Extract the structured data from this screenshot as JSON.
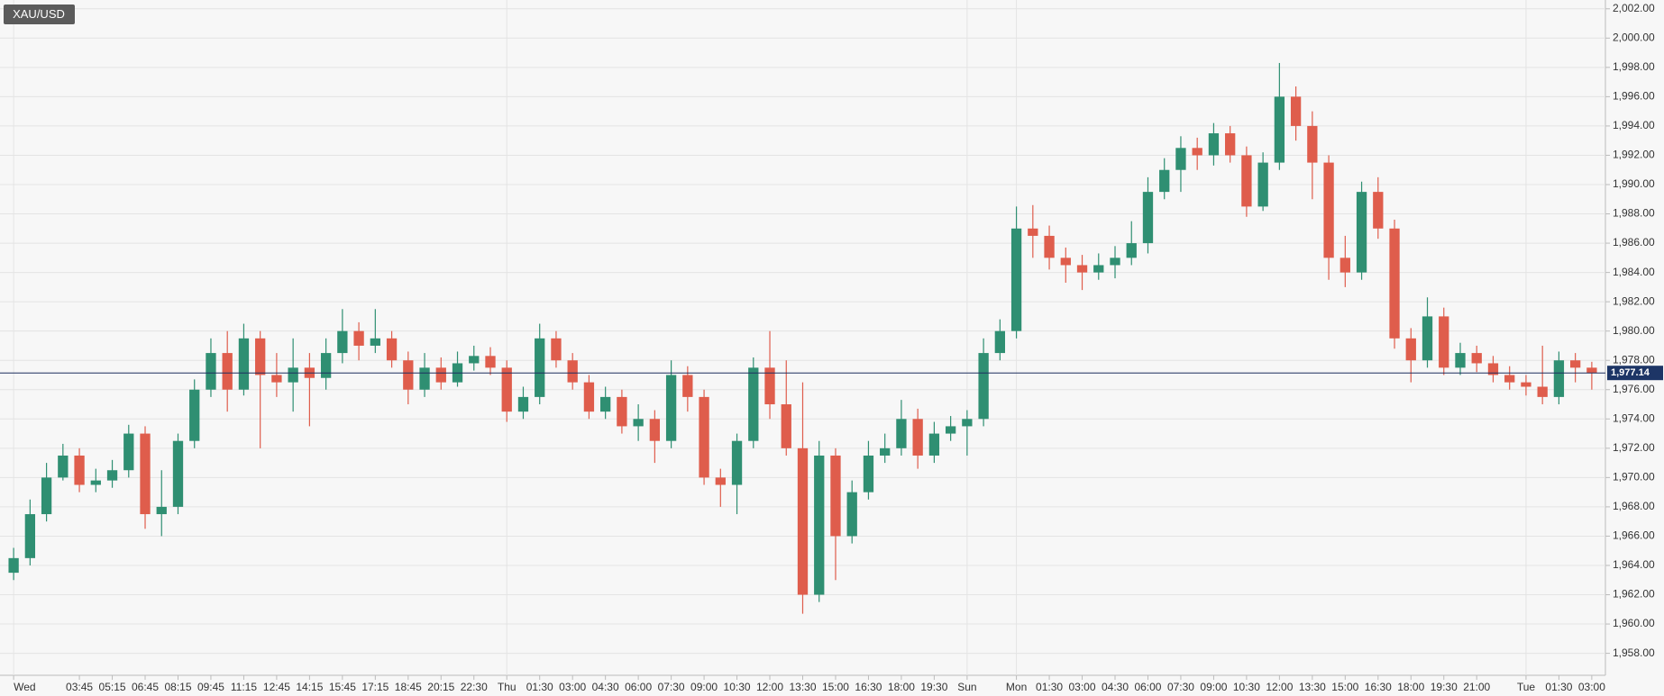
{
  "chart_data": {
    "type": "candlestick",
    "title": "XAU/USD",
    "categories": [
      "Wed",
      null,
      null,
      null,
      "03:45",
      null,
      "05:15",
      null,
      "06:45",
      null,
      "08:15",
      null,
      "09:45",
      null,
      "11:15",
      null,
      "12:45",
      null,
      "14:15",
      null,
      "15:45",
      null,
      "17:15",
      null,
      "18:45",
      null,
      "20:15",
      null,
      "22:30",
      null,
      "Thu",
      null,
      "01:30",
      null,
      "03:00",
      null,
      "04:30",
      null,
      "06:00",
      null,
      "07:30",
      null,
      "09:00",
      null,
      "10:30",
      null,
      "12:00",
      null,
      "13:30",
      null,
      "15:00",
      null,
      "16:30",
      null,
      "18:00",
      null,
      "19:30",
      null,
      "Sun",
      null,
      null,
      "Mon",
      null,
      "01:30",
      null,
      "03:00",
      null,
      "04:30",
      null,
      "06:00",
      null,
      "07:30",
      null,
      "09:00",
      null,
      "10:30",
      null,
      "12:00",
      null,
      "13:30",
      null,
      "15:00",
      null,
      "16:30",
      null,
      "18:00",
      null,
      "19:30",
      null,
      "21:00",
      null,
      null,
      "Tue",
      null,
      "01:30",
      null,
      "03:00"
    ],
    "open": [
      1963.5,
      1964.5,
      1967.5,
      1970,
      1971.5,
      1969.5,
      1969.8,
      1970.5,
      1973,
      1967.5,
      1968,
      1972.5,
      1976,
      1978.5,
      1976,
      1979.5,
      1977,
      1976.5,
      1977.5,
      1976.8,
      1978.5,
      1980,
      1979,
      1979.5,
      1978,
      1976,
      1977.5,
      1976.5,
      1977.8,
      1978.3,
      1977.5,
      1974.5,
      1975.5,
      1979.5,
      1978,
      1976.5,
      1974.5,
      1975.5,
      1973.5,
      1974,
      1972.5,
      1977,
      1975.5,
      1970,
      1969.5,
      1972.5,
      1977.5,
      1975,
      1972,
      1962,
      1971.5,
      1966,
      1969,
      1971.5,
      1972,
      1974,
      1971.5,
      1973,
      1973.5,
      1974,
      1978.5,
      1980,
      1987,
      1986.5,
      1985,
      1984.5,
      1984,
      1984.5,
      1985,
      1986,
      1989.5,
      1991,
      1992.5,
      1992,
      1993.5,
      1992,
      1988.5,
      1991.5,
      1996,
      1994,
      1991.5,
      1985,
      1984,
      1989.5,
      1987,
      1979.5,
      1978,
      1981,
      1977.5,
      1978.5,
      1977.8,
      1977,
      1976.5,
      1976.2,
      1975.5,
      1978,
      1977.5
    ],
    "high": [
      1965.2,
      1968.5,
      1971,
      1972.3,
      1972,
      1970.6,
      1971.2,
      1973.6,
      1973.5,
      1970.5,
      1973,
      1976.7,
      1979.5,
      1980,
      1980.5,
      1980,
      1978.5,
      1979.5,
      1978.5,
      1979.5,
      1981.5,
      1980.6,
      1981.5,
      1980,
      1978.6,
      1978.5,
      1978.2,
      1978.6,
      1979,
      1978.9,
      1978,
      1976.2,
      1980.5,
      1980,
      1978.5,
      1977,
      1976.2,
      1976,
      1975,
      1974.6,
      1978,
      1977.6,
      1976,
      1970.6,
      1973,
      1978.2,
      1980,
      1978,
      1976.5,
      1972.5,
      1972,
      1969.8,
      1972.5,
      1973,
      1975.3,
      1974.7,
      1973.8,
      1974.2,
      1974.6,
      1979.5,
      1980.8,
      1988.5,
      1988.6,
      1987.2,
      1985.7,
      1985.2,
      1985.3,
      1985.8,
      1987.5,
      1990.5,
      1991.8,
      1993.3,
      1993.2,
      1994.2,
      1994,
      1992.6,
      1992.2,
      1998.3,
      1996.7,
      1995,
      1992,
      1986.5,
      1990.2,
      1990.5,
      1987.6,
      1980.2,
      1982.3,
      1981.6,
      1979.2,
      1979,
      1978.3,
      1977.6,
      1977,
      1979,
      1978.6,
      1978.5,
      1977.9
    ],
    "low": [
      1963,
      1964,
      1967,
      1969.8,
      1969,
      1969,
      1969.3,
      1970,
      1966.5,
      1966,
      1967.5,
      1972,
      1975.5,
      1974.5,
      1975.6,
      1972,
      1975.5,
      1974.5,
      1973.5,
      1976,
      1977.8,
      1978,
      1978.5,
      1977.5,
      1975,
      1975.5,
      1976,
      1976.2,
      1977.3,
      1977,
      1973.8,
      1974,
      1975,
      1977.5,
      1976,
      1974,
      1974,
      1973,
      1972.5,
      1971,
      1972,
      1974.5,
      1969.5,
      1968,
      1967.5,
      1972,
      1974,
      1971.5,
      1960.7,
      1961.5,
      1963,
      1965.5,
      1968.5,
      1971,
      1971.5,
      1970.6,
      1971,
      1972.5,
      1971.5,
      1973.5,
      1978,
      1979.5,
      1985,
      1984.2,
      1983.3,
      1982.8,
      1983.5,
      1983.6,
      1984.5,
      1985.3,
      1989,
      1989.5,
      1991,
      1991.3,
      1991.5,
      1987.8,
      1988.2,
      1991,
      1993,
      1989,
      1983.5,
      1983,
      1983.5,
      1986.3,
      1978.8,
      1976.5,
      1977.5,
      1977,
      1977,
      1977.2,
      1976.5,
      1976,
      1975.6,
      1975,
      1975,
      1976.5,
      1976
    ],
    "close": [
      1964.5,
      1967.5,
      1970,
      1971.5,
      1969.5,
      1969.8,
      1970.5,
      1973,
      1967.5,
      1968,
      1972.5,
      1976,
      1978.5,
      1976,
      1979.5,
      1977,
      1976.5,
      1977.5,
      1976.8,
      1978.5,
      1980,
      1979,
      1979.5,
      1978,
      1976,
      1977.5,
      1976.5,
      1977.8,
      1978.3,
      1977.5,
      1974.5,
      1975.5,
      1979.5,
      1978,
      1976.5,
      1974.5,
      1975.5,
      1973.5,
      1974,
      1972.5,
      1977,
      1975.5,
      1970,
      1969.5,
      1972.5,
      1977.5,
      1975,
      1972,
      1962,
      1971.5,
      1966,
      1969,
      1971.5,
      1972,
      1974,
      1971.5,
      1973,
      1973.5,
      1974,
      1978.5,
      1980,
      1987,
      1986.5,
      1985,
      1984.5,
      1984,
      1984.5,
      1985,
      1986,
      1989.5,
      1991,
      1992.5,
      1992,
      1993.5,
      1992,
      1988.5,
      1991.5,
      1996,
      1994,
      1991.5,
      1985,
      1984,
      1989.5,
      1987,
      1979.5,
      1978,
      1981,
      1977.5,
      1978.5,
      1977.8,
      1977,
      1976.5,
      1976.2,
      1975.5,
      1978,
      1977.5,
      1977.14
    ],
    "up_color": "#2f8f72",
    "down_color": "#df5d4c",
    "ylim": [
      1956.5,
      2002.6
    ],
    "yticks": [
      {
        "value": 1958,
        "label": "1,958.00"
      },
      {
        "value": 1960,
        "label": "1,960.00"
      },
      {
        "value": 1962,
        "label": "1,962.00"
      },
      {
        "value": 1964,
        "label": "1,964.00"
      },
      {
        "value": 1966,
        "label": "1,966.00"
      },
      {
        "value": 1968,
        "label": "1,968.00"
      },
      {
        "value": 1970,
        "label": "1,970.00"
      },
      {
        "value": 1972,
        "label": "1,972.00"
      },
      {
        "value": 1974,
        "label": "1,974.00"
      },
      {
        "value": 1976,
        "label": "1,976.00"
      },
      {
        "value": 1978,
        "label": "1,978.00"
      },
      {
        "value": 1980,
        "label": "1,980.00"
      },
      {
        "value": 1982,
        "label": "1,982.00"
      },
      {
        "value": 1984,
        "label": "1,984.00"
      },
      {
        "value": 1986,
        "label": "1,986.00"
      },
      {
        "value": 1988,
        "label": "1,988.00"
      },
      {
        "value": 1990,
        "label": "1,990.00"
      },
      {
        "value": 1992,
        "label": "1,992.00"
      },
      {
        "value": 1994,
        "label": "1,994.00"
      },
      {
        "value": 1996,
        "label": "1,996.00"
      },
      {
        "value": 1998,
        "label": "1,998.00"
      },
      {
        "value": 2000,
        "label": "2,000.00"
      },
      {
        "value": 2002,
        "label": "2,002.00"
      }
    ],
    "current_price": {
      "value": 1977.14,
      "label": "1,977.14"
    },
    "grid": true
  }
}
